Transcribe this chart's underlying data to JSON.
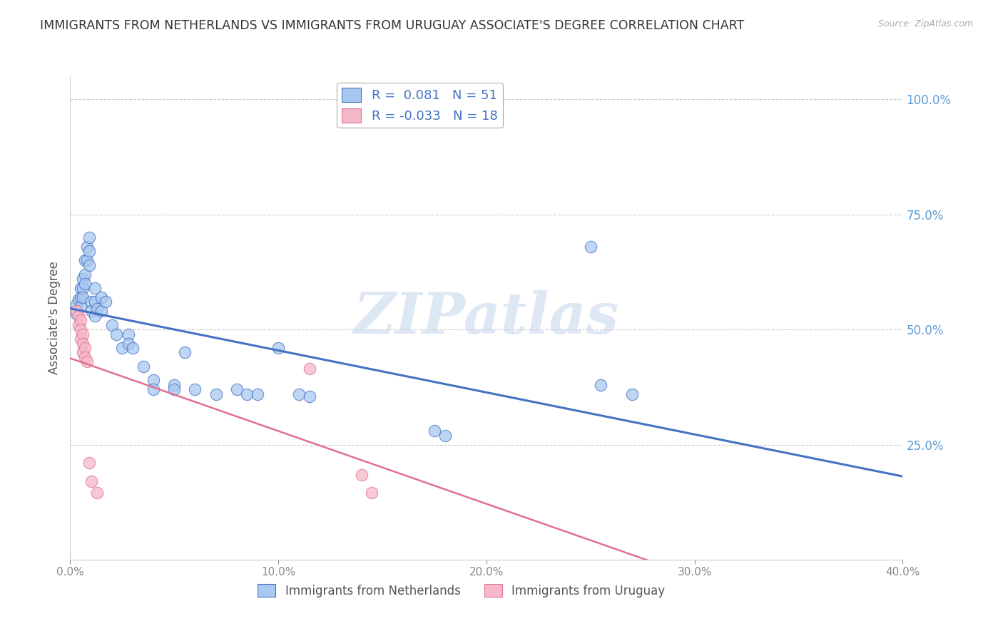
{
  "title": "IMMIGRANTS FROM NETHERLANDS VS IMMIGRANTS FROM URUGUAY ASSOCIATE'S DEGREE CORRELATION CHART",
  "source": "Source: ZipAtlas.com",
  "ylabel": "Associate's Degree",
  "blue_R": "0.081",
  "blue_N": "51",
  "pink_R": "-0.033",
  "pink_N": "18",
  "blue_color": "#A8C8F0",
  "pink_color": "#F5B8C8",
  "blue_line_color": "#4472C4",
  "pink_line_color": "#E07090",
  "blue_scatter": [
    [
      0.003,
      0.555
    ],
    [
      0.003,
      0.535
    ],
    [
      0.004,
      0.565
    ],
    [
      0.005,
      0.59
    ],
    [
      0.005,
      0.57
    ],
    [
      0.005,
      0.55
    ],
    [
      0.006,
      0.61
    ],
    [
      0.006,
      0.59
    ],
    [
      0.006,
      0.57
    ],
    [
      0.007,
      0.65
    ],
    [
      0.007,
      0.62
    ],
    [
      0.007,
      0.6
    ],
    [
      0.008,
      0.68
    ],
    [
      0.008,
      0.65
    ],
    [
      0.009,
      0.7
    ],
    [
      0.009,
      0.67
    ],
    [
      0.009,
      0.64
    ],
    [
      0.01,
      0.56
    ],
    [
      0.01,
      0.54
    ],
    [
      0.012,
      0.59
    ],
    [
      0.012,
      0.56
    ],
    [
      0.012,
      0.53
    ],
    [
      0.013,
      0.545
    ],
    [
      0.015,
      0.57
    ],
    [
      0.015,
      0.54
    ],
    [
      0.017,
      0.56
    ],
    [
      0.02,
      0.51
    ],
    [
      0.022,
      0.49
    ],
    [
      0.025,
      0.46
    ],
    [
      0.028,
      0.49
    ],
    [
      0.028,
      0.47
    ],
    [
      0.03,
      0.46
    ],
    [
      0.035,
      0.42
    ],
    [
      0.04,
      0.39
    ],
    [
      0.04,
      0.37
    ],
    [
      0.05,
      0.38
    ],
    [
      0.05,
      0.37
    ],
    [
      0.055,
      0.45
    ],
    [
      0.06,
      0.37
    ],
    [
      0.07,
      0.36
    ],
    [
      0.08,
      0.37
    ],
    [
      0.085,
      0.36
    ],
    [
      0.09,
      0.36
    ],
    [
      0.1,
      0.46
    ],
    [
      0.11,
      0.36
    ],
    [
      0.115,
      0.355
    ],
    [
      0.175,
      0.28
    ],
    [
      0.18,
      0.27
    ],
    [
      0.25,
      0.68
    ],
    [
      0.255,
      0.38
    ],
    [
      0.27,
      0.36
    ]
  ],
  "pink_scatter": [
    [
      0.003,
      0.54
    ],
    [
      0.004,
      0.53
    ],
    [
      0.004,
      0.51
    ],
    [
      0.005,
      0.52
    ],
    [
      0.005,
      0.5
    ],
    [
      0.005,
      0.48
    ],
    [
      0.006,
      0.49
    ],
    [
      0.006,
      0.47
    ],
    [
      0.006,
      0.45
    ],
    [
      0.007,
      0.46
    ],
    [
      0.007,
      0.44
    ],
    [
      0.008,
      0.43
    ],
    [
      0.009,
      0.21
    ],
    [
      0.01,
      0.17
    ],
    [
      0.013,
      0.145
    ],
    [
      0.115,
      0.415
    ],
    [
      0.14,
      0.185
    ],
    [
      0.145,
      0.145
    ]
  ],
  "xlim": [
    0.0,
    0.4
  ],
  "ylim": [
    0.0,
    1.05
  ],
  "xticks": [
    0.0,
    0.1,
    0.2,
    0.3,
    0.4
  ],
  "xtick_labels": [
    "0.0%",
    "10.0%",
    "20.0%",
    "30.0%",
    "40.0%"
  ],
  "yticks": [
    0.0,
    0.25,
    0.5,
    0.75,
    1.0
  ],
  "ytick_labels": [
    "",
    "25.0%",
    "50.0%",
    "75.0%",
    "100.0%"
  ],
  "background_color": "#FFFFFF",
  "grid_color": "#CCCCCC",
  "watermark": "ZIPatlas",
  "watermark_color": "#C8D8EE",
  "tick_label_color": "#5B9BD5",
  "legend_label_blue": "Immigrants from Netherlands",
  "legend_label_pink": "Immigrants from Uruguay"
}
